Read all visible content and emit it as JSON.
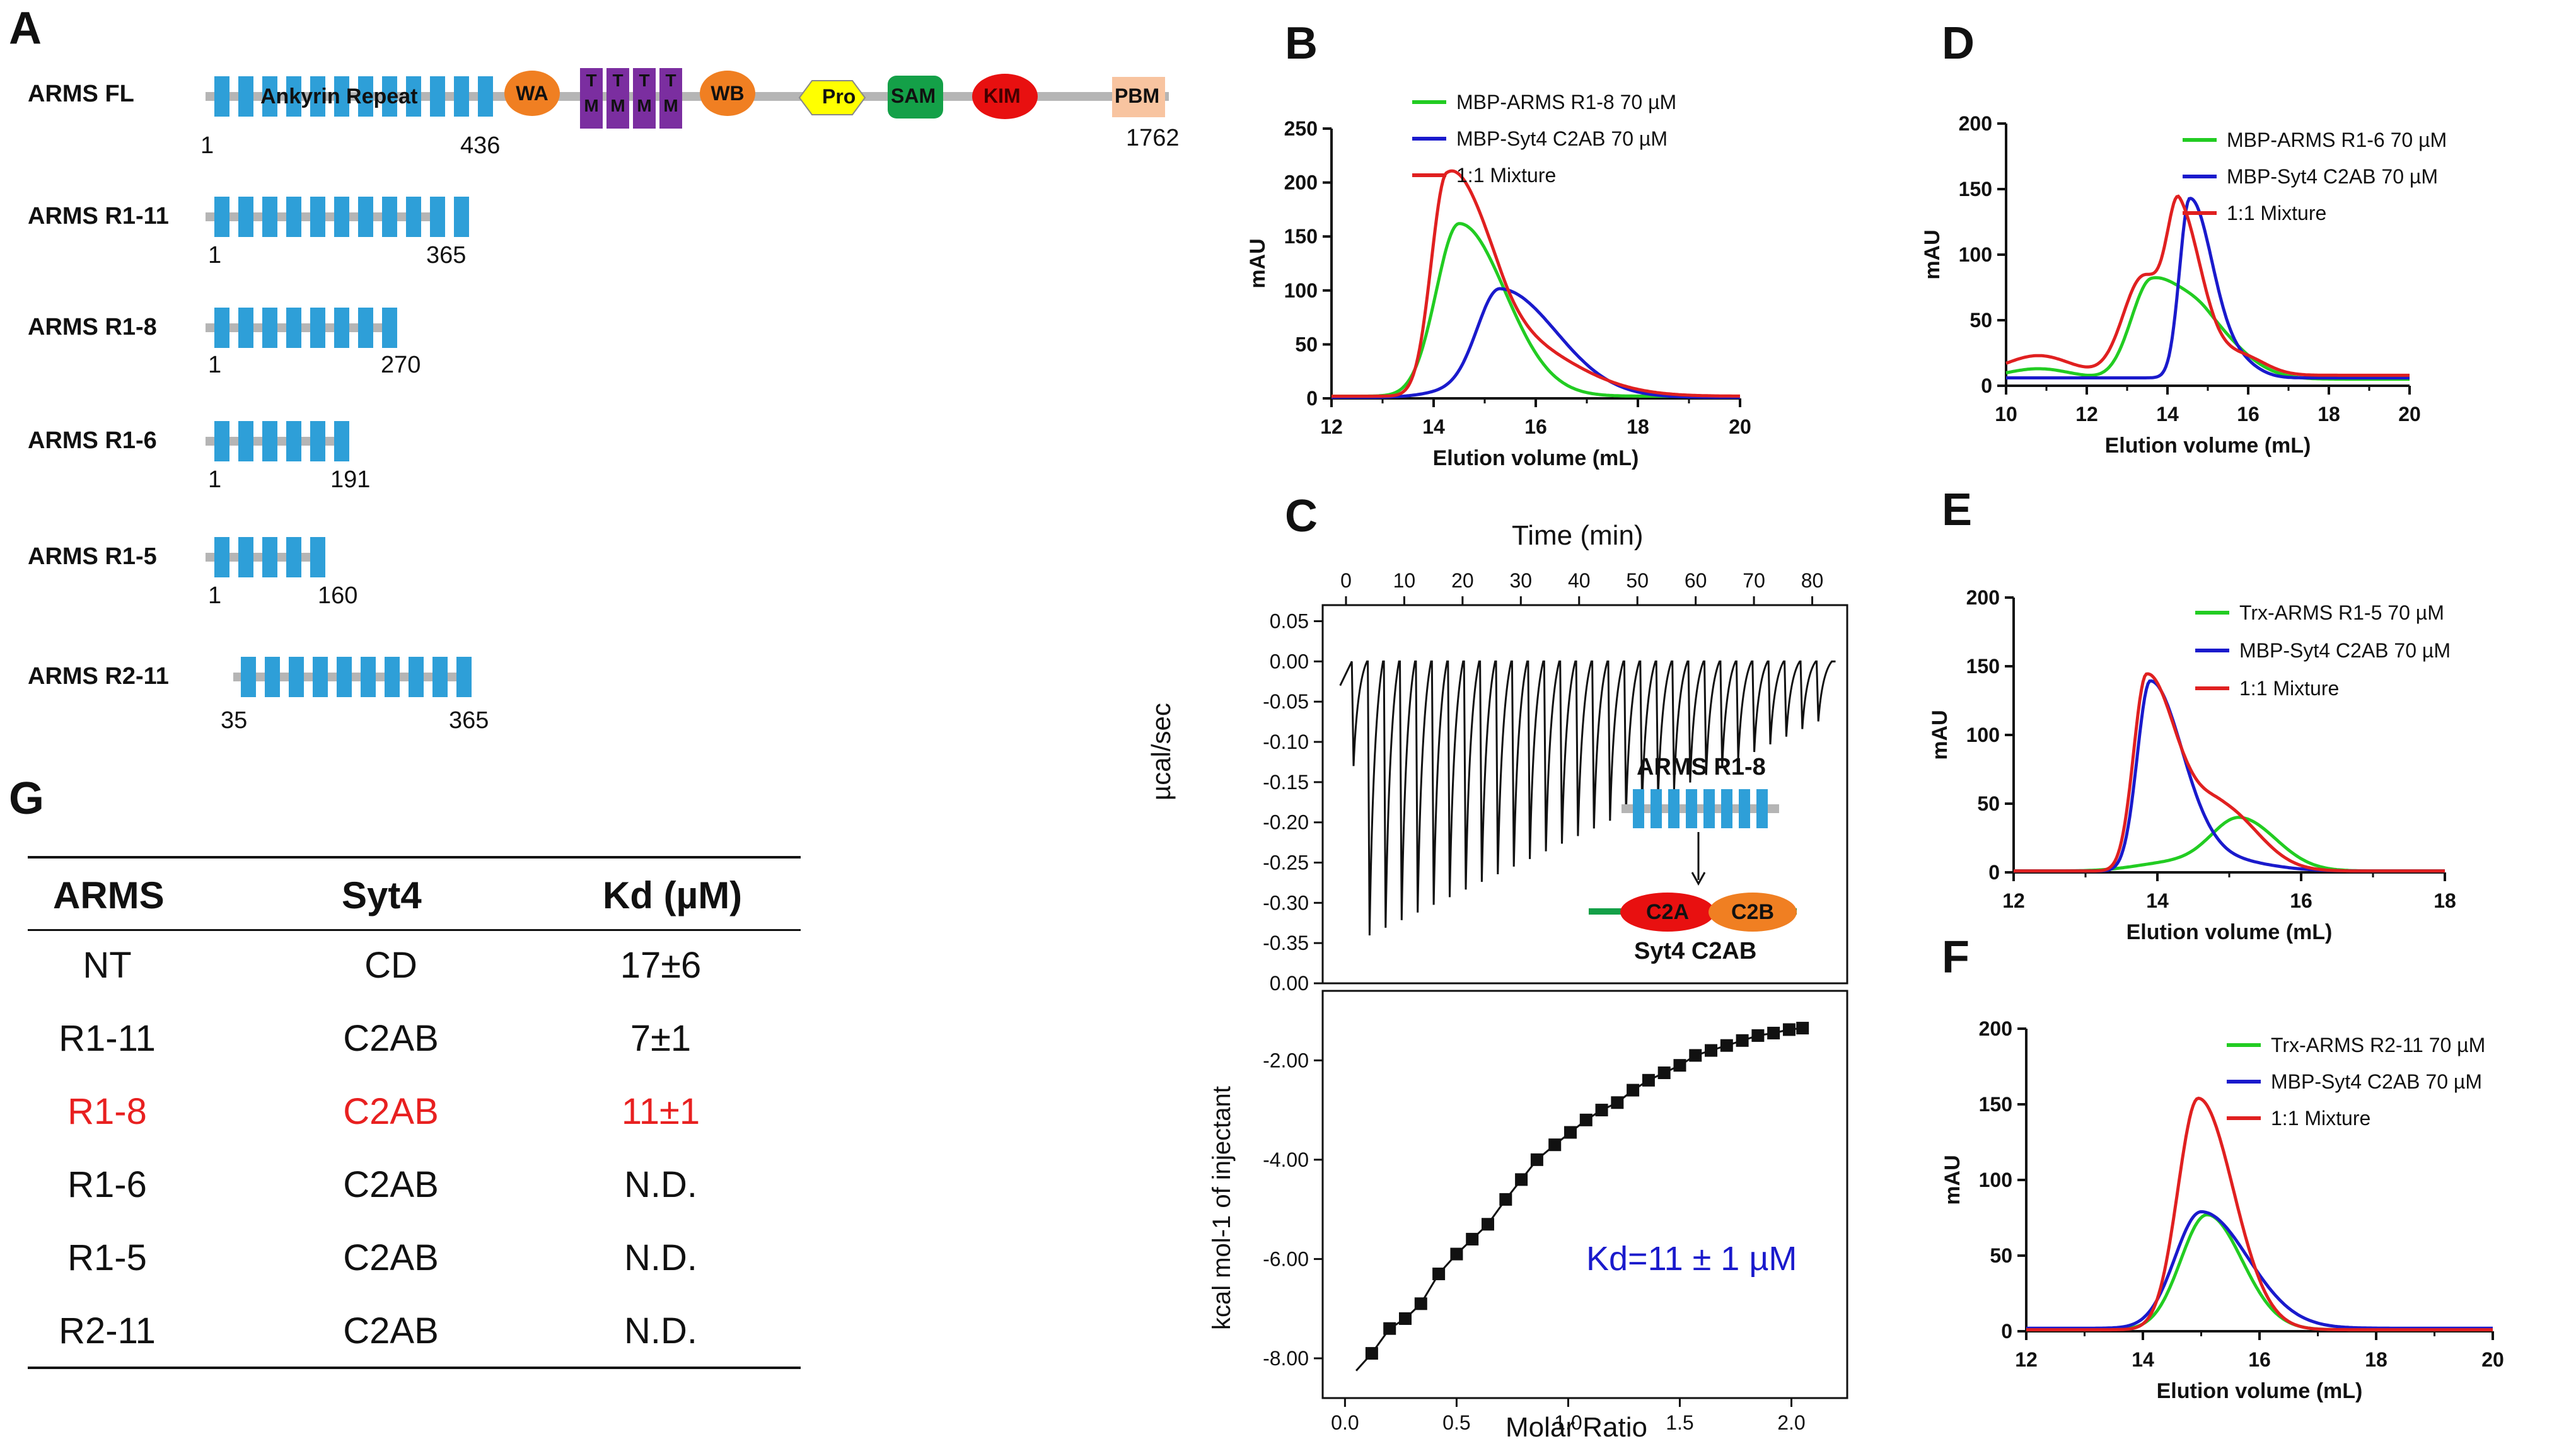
{
  "panels": {
    "A": "A",
    "B": "B",
    "C": "C",
    "D": "D",
    "E": "E",
    "F": "F",
    "G": "G"
  },
  "panel_a": {
    "fl": {
      "name": "ARMS FL",
      "domain_label": "Ankyrin Repeat",
      "wa": "WA",
      "tm": "T\nM",
      "wb": "WB",
      "pro": "Pro",
      "sam": "SAM",
      "kim": "KIM",
      "pbm": "PBM",
      "start": "1",
      "mid": "436",
      "end": "1762"
    },
    "constructs": [
      {
        "name": "ARMS R1-11",
        "start": "1",
        "end": "365"
      },
      {
        "name": "ARMS R1-8",
        "start": "1",
        "end": "270"
      },
      {
        "name": "ARMS R1-6",
        "start": "1",
        "end": "191"
      },
      {
        "name": "ARMS R1-5",
        "start": "1",
        "end": "160"
      },
      {
        "name": "ARMS R2-11",
        "start": "35",
        "end": "365"
      }
    ]
  },
  "panel_c": {
    "top_axis_label": "Time (min)",
    "top_ylabel": "µcal/sec",
    "bottom_ylabel": "kcal mol-1 of injectant",
    "xlabel": "Molar Ratio",
    "top_xticks": [
      "0",
      "10",
      "20",
      "30",
      "40",
      "50",
      "60",
      "70",
      "80"
    ],
    "top_yticks": [
      "0.05",
      "0.00",
      "-0.05",
      "-0.10",
      "-0.15",
      "-0.20",
      "-0.25",
      "-0.30",
      "-0.35",
      "0.00"
    ],
    "bottom_yticks": [
      "-2.00",
      "-4.00",
      "-6.00",
      "-8.00"
    ],
    "bottom_xticks": [
      "0.0",
      "0.5",
      "1.0",
      "1.5",
      "2.0"
    ],
    "inset_top": "ARMS R1-8",
    "inset_c2a": "C2A",
    "inset_c2b": "C2B",
    "inset_bottom": "Syt4 C2AB",
    "kd_label": "Kd=11 ± 1 µM",
    "fit_points": [
      [
        0.12,
        -7.9
      ],
      [
        0.2,
        -7.4
      ],
      [
        0.27,
        -7.2
      ],
      [
        0.34,
        -6.9
      ],
      [
        0.42,
        -6.3
      ],
      [
        0.5,
        -5.9
      ],
      [
        0.57,
        -5.6
      ],
      [
        0.64,
        -5.3
      ],
      [
        0.72,
        -4.8
      ],
      [
        0.79,
        -4.4
      ],
      [
        0.86,
        -4.0
      ],
      [
        0.94,
        -3.7
      ],
      [
        1.01,
        -3.45
      ],
      [
        1.08,
        -3.2
      ],
      [
        1.15,
        -3.0
      ],
      [
        1.22,
        -2.85
      ],
      [
        1.29,
        -2.6
      ],
      [
        1.36,
        -2.4
      ],
      [
        1.43,
        -2.25
      ],
      [
        1.5,
        -2.1
      ],
      [
        1.57,
        -1.9
      ],
      [
        1.64,
        -1.8
      ],
      [
        1.71,
        -1.7
      ],
      [
        1.78,
        -1.6
      ],
      [
        1.85,
        -1.5
      ],
      [
        1.92,
        -1.45
      ],
      [
        1.99,
        -1.38
      ],
      [
        2.05,
        -1.35
      ]
    ]
  },
  "chart_data": [
    {
      "type": "line",
      "panel": "B",
      "xlabel": "Elution volume (mL)",
      "ylabel": "mAU",
      "xlim": [
        12,
        20
      ],
      "ylim": [
        0,
        250
      ],
      "xticks": [
        "12",
        "14",
        "16",
        "18",
        "20"
      ],
      "yticks": [
        "0",
        "50",
        "100",
        "150",
        "200",
        "250"
      ],
      "series": [
        {
          "name": "MBP-ARMS R1-8  70 µM",
          "color": "#22cc22",
          "peaks": [
            [
              14.5,
              160,
              0.45,
              0.9
            ]
          ],
          "baseline": 2
        },
        {
          "name": "MBP-Syt4 C2AB  70 µM",
          "color": "#1a1acc",
          "peaks": [
            [
              15.3,
              100,
              0.45,
              1.1
            ],
            [
              14.3,
              5,
              0.5,
              0.5
            ]
          ],
          "baseline": 1
        },
        {
          "name": "1:1 Mixture",
          "color": "#e02020",
          "peaks": [
            [
              14.25,
              195,
              0.3,
              0.7
            ],
            [
              15.3,
              55,
              0.6,
              1.3
            ]
          ],
          "baseline": 2
        }
      ]
    },
    {
      "type": "line",
      "panel": "D",
      "xlabel": "Elution volume (mL)",
      "ylabel": "mAU",
      "xlim": [
        10,
        20
      ],
      "ylim": [
        0,
        200
      ],
      "xticks": [
        "10",
        "12",
        "14",
        "16",
        "18",
        "20"
      ],
      "yticks": [
        "0",
        "50",
        "100",
        "150",
        "200"
      ],
      "series": [
        {
          "name": "MBP-ARMS R1-6 70 µM",
          "color": "#22cc22",
          "peaks": [
            [
              13.6,
              75,
              0.5,
              0.9
            ],
            [
              15.0,
              30,
              0.6,
              0.9
            ],
            [
              10.8,
              8,
              0.8,
              0.8
            ]
          ],
          "baseline": 5
        },
        {
          "name": "MBP-Syt4 C2AB 70 µM",
          "color": "#1a1acc",
          "peaks": [
            [
              14.55,
              135,
              0.25,
              0.55
            ],
            [
              15.7,
              12,
              0.6,
              0.5
            ]
          ],
          "baseline": 6
        },
        {
          "name": "1:1 Mixture",
          "color": "#e02020",
          "peaks": [
            [
              14.3,
              120,
              0.3,
              0.55
            ],
            [
              13.4,
              75,
              0.5,
              0.5
            ],
            [
              15.8,
              15,
              0.6,
              0.6
            ],
            [
              10.8,
              15,
              0.8,
              0.8
            ]
          ],
          "baseline": 8
        }
      ]
    },
    {
      "type": "line",
      "panel": "E",
      "xlabel": "Elution volume (mL)",
      "ylabel": "mAU",
      "xlim": [
        12,
        18
      ],
      "ylim": [
        0,
        200
      ],
      "xticks": [
        "12",
        "14",
        "16",
        "18"
      ],
      "yticks": [
        "0",
        "50",
        "100",
        "150",
        "200"
      ],
      "series": [
        {
          "name": "Trx-ARMS R1-5  70 µM",
          "color": "#22cc22",
          "peaks": [
            [
              15.15,
              38,
              0.4,
              0.5
            ],
            [
              14.2,
              6,
              0.5,
              0.5
            ]
          ],
          "baseline": 1
        },
        {
          "name": "MBP-Syt4 C2AB  70 µM",
          "color": "#1a1acc",
          "peaks": [
            [
              13.9,
              138,
              0.18,
              0.45
            ],
            [
              14.9,
              8,
              0.4,
              0.6
            ]
          ],
          "baseline": 1
        },
        {
          "name": "1:1 Mixture",
          "color": "#e02020",
          "peaks": [
            [
              13.85,
              142,
              0.18,
              0.42
            ],
            [
              14.9,
              45,
              0.4,
              0.5
            ]
          ],
          "baseline": 1
        }
      ]
    },
    {
      "type": "line",
      "panel": "F",
      "xlabel": "Elution volume (mL)",
      "ylabel": "mAU",
      "xlim": [
        12,
        20
      ],
      "ylim": [
        0,
        200
      ],
      "xticks": [
        "12",
        "14",
        "16",
        "18",
        "20"
      ],
      "yticks": [
        "0",
        "50",
        "100",
        "150",
        "200"
      ],
      "series": [
        {
          "name": "Trx-ARMS R2-11  70 µM",
          "color": "#22cc22",
          "peaks": [
            [
              15.1,
              76,
              0.45,
              0.6
            ]
          ],
          "baseline": 1
        },
        {
          "name": "MBP-Syt4 C2AB  70 µM",
          "color": "#1a1acc",
          "peaks": [
            [
              15.0,
              77,
              0.45,
              0.8
            ]
          ],
          "baseline": 2
        },
        {
          "name": "1:1 Mixture",
          "color": "#e02020",
          "peaks": [
            [
              14.95,
              153,
              0.35,
              0.6
            ]
          ],
          "baseline": 1
        }
      ]
    }
  ],
  "table_g": {
    "headers": {
      "arms": "ARMS",
      "syt4": "Syt4",
      "kd": "Kd (µM)"
    },
    "rows": [
      {
        "arms": "NT",
        "syt4": "CD",
        "kd": "17±6",
        "highlight": false
      },
      {
        "arms": "R1-11",
        "syt4": "C2AB",
        "kd": "7±1",
        "highlight": false
      },
      {
        "arms": "R1-8",
        "syt4": "C2AB",
        "kd": "11±1",
        "highlight": true
      },
      {
        "arms": "R1-6",
        "syt4": "C2AB",
        "kd": "N.D.",
        "highlight": false
      },
      {
        "arms": "R1-5",
        "syt4": "C2AB",
        "kd": "N.D.",
        "highlight": false
      },
      {
        "arms": "R2-11",
        "syt4": "C2AB",
        "kd": "N.D.",
        "highlight": false
      }
    ]
  },
  "colors": {
    "repeat": "#2e9fd8",
    "wa": "#f07f22",
    "tm": "#7b2ea0",
    "pro": "#ffff00",
    "sam": "#14a048",
    "kim": "#e81010",
    "pbm": "#f8c4a0",
    "backbone": "#b5b5b5",
    "red": "#e82020",
    "blue": "#1a1acc"
  }
}
